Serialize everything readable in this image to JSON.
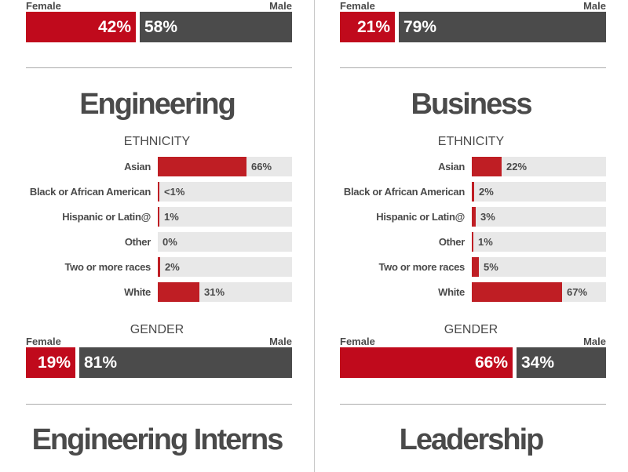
{
  "colors": {
    "female": "#c00a1c",
    "male": "#4b4b4b",
    "ethnicity_bar": "#bf1e24",
    "track": "#e8e8e8",
    "text": "#4a4a4a"
  },
  "chart_data": [
    {
      "type": "bar",
      "column": "left",
      "section": "previous",
      "gender": {
        "female_label": "Female",
        "male_label": "Male",
        "female": 42,
        "male": 58,
        "female_text": "42%",
        "male_text": "58%"
      }
    },
    {
      "type": "bar",
      "column": "right",
      "section": "previous",
      "gender": {
        "female_label": "Female",
        "male_label": "Male",
        "female": 21,
        "male": 79,
        "female_text": "21%",
        "male_text": "79%"
      }
    },
    {
      "type": "bar",
      "column": "left",
      "title": "Engineering",
      "ethnicity_label": "ETHNICITY",
      "categories": [
        "Asian",
        "Black or African American",
        "Hispanic or Latin@",
        "Other",
        "Two or more races",
        "White"
      ],
      "values": [
        66,
        0.5,
        1,
        0,
        2,
        31
      ],
      "value_labels": [
        "66%",
        "<1%",
        "1%",
        "0%",
        "2%",
        "31%"
      ],
      "xlim": [
        0,
        100
      ],
      "gender_label": "GENDER",
      "gender": {
        "female_label": "Female",
        "male_label": "Male",
        "female": 19,
        "male": 81,
        "female_text": "19%",
        "male_text": "81%"
      }
    },
    {
      "type": "bar",
      "column": "right",
      "title": "Business",
      "ethnicity_label": "ETHNICITY",
      "categories": [
        "Asian",
        "Black or African American",
        "Hispanic or Latin@",
        "Other",
        "Two or more races",
        "White"
      ],
      "values": [
        22,
        2,
        3,
        1,
        5,
        67
      ],
      "value_labels": [
        "22%",
        "2%",
        "3%",
        "1%",
        "5%",
        "67%"
      ],
      "xlim": [
        0,
        100
      ],
      "gender_label": "GENDER",
      "gender": {
        "female_label": "Female",
        "male_label": "Male",
        "female": 66,
        "male": 34,
        "female_text": "66%",
        "male_text": "34%"
      }
    },
    {
      "type": "bar",
      "column": "left",
      "title": "Engineering Interns"
    },
    {
      "type": "bar",
      "column": "right",
      "title": "Leadership"
    }
  ]
}
